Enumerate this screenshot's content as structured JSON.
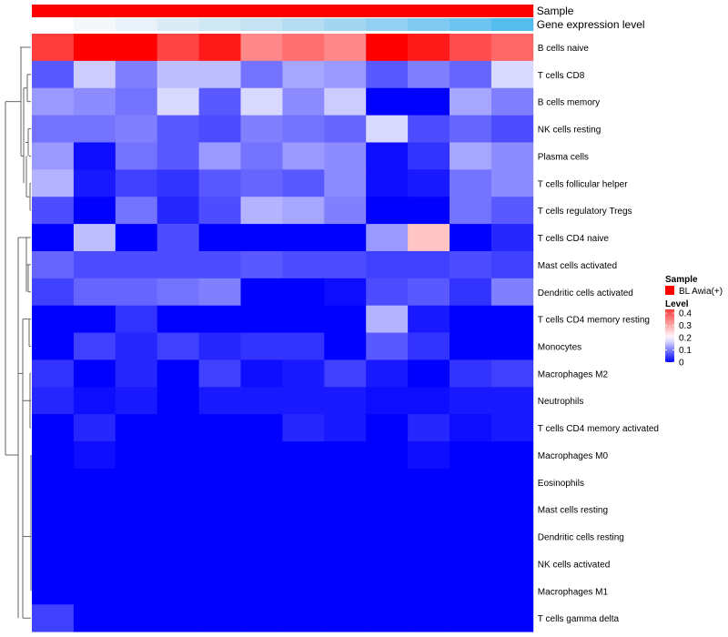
{
  "chart_data": {
    "type": "heatmap",
    "annotations": [
      {
        "label": "Sample",
        "colors": [
          "#ff0000",
          "#ff0000",
          "#ff0000",
          "#ff0000",
          "#ff0000",
          "#ff0000",
          "#ff0000",
          "#ff0000",
          "#ff0000",
          "#ff0000",
          "#ff0000",
          "#ff0000"
        ]
      },
      {
        "label": "Gene expression level",
        "colors": [
          "#ffffff",
          "#f4f8fb",
          "#e9f2f8",
          "#dcecf6",
          "#d0e7f4",
          "#c4e2f2",
          "#b5dcf1",
          "#a5d6f1",
          "#93d0f1",
          "#80caf1",
          "#6dc4f1",
          "#55bdee"
        ]
      }
    ],
    "rows": [
      "B cells naive",
      "T cells CD8",
      "B cells memory",
      "NK cells resting",
      "Plasma cells",
      "T cells follicular helper",
      "T cells regulatory  Tregs",
      "T cells CD4 naive",
      "Mast cells activated",
      "Dendritic cells activated",
      "T cells CD4 memory resting",
      "Monocytes",
      "Macrophages M2",
      "Neutrophils",
      "T cells CD4 memory activated",
      "Macrophages M0",
      "Eosinophils",
      "Mast cells resting",
      "Dendritic cells resting",
      "NK cells activated",
      "Macrophages M1",
      "T cells gamma delta"
    ],
    "values": [
      [
        0.43,
        0.5,
        0.5,
        0.42,
        0.47,
        0.34,
        0.37,
        0.34,
        0.5,
        0.47,
        0.41,
        0.38
      ],
      [
        0.07,
        0.16,
        0.1,
        0.15,
        0.15,
        0.09,
        0.13,
        0.12,
        0.07,
        0.1,
        0.08,
        0.17
      ],
      [
        0.12,
        0.11,
        0.09,
        0.17,
        0.07,
        0.17,
        0.11,
        0.16,
        0.0,
        0.0,
        0.13,
        0.1
      ],
      [
        0.09,
        0.09,
        0.1,
        0.07,
        0.06,
        0.1,
        0.09,
        0.08,
        0.17,
        0.06,
        0.08,
        0.06
      ],
      [
        0.12,
        0.01,
        0.09,
        0.07,
        0.12,
        0.09,
        0.12,
        0.11,
        0.01,
        0.04,
        0.13,
        0.11
      ],
      [
        0.14,
        0.02,
        0.05,
        0.04,
        0.07,
        0.08,
        0.07,
        0.11,
        0.01,
        0.02,
        0.09,
        0.11
      ],
      [
        0.06,
        0.0,
        0.09,
        0.03,
        0.06,
        0.14,
        0.13,
        0.1,
        0.0,
        0.0,
        0.09,
        0.07
      ],
      [
        0.0,
        0.15,
        0.0,
        0.06,
        0.0,
        0.0,
        0.0,
        0.0,
        0.12,
        0.27,
        0.0,
        0.03
      ],
      [
        0.08,
        0.06,
        0.06,
        0.06,
        0.06,
        0.07,
        0.06,
        0.06,
        0.05,
        0.05,
        0.06,
        0.05
      ],
      [
        0.05,
        0.08,
        0.08,
        0.09,
        0.1,
        0.0,
        0.0,
        0.01,
        0.06,
        0.07,
        0.04,
        0.1
      ],
      [
        0.0,
        0.0,
        0.04,
        0.0,
        0.0,
        0.0,
        0.0,
        0.0,
        0.14,
        0.02,
        0.0,
        0.0
      ],
      [
        0.0,
        0.05,
        0.03,
        0.05,
        0.03,
        0.04,
        0.04,
        0.0,
        0.07,
        0.04,
        0.0,
        0.0
      ],
      [
        0.04,
        0.0,
        0.03,
        0.0,
        0.05,
        0.01,
        0.02,
        0.05,
        0.02,
        0.0,
        0.04,
        0.05
      ],
      [
        0.03,
        0.01,
        0.02,
        0.0,
        0.02,
        0.02,
        0.02,
        0.02,
        0.01,
        0.01,
        0.02,
        0.02
      ],
      [
        0.0,
        0.03,
        0.0,
        0.0,
        0.0,
        0.0,
        0.03,
        0.02,
        0.0,
        0.03,
        0.01,
        0.02
      ],
      [
        0.0,
        0.01,
        0.0,
        0.0,
        0.0,
        0.0,
        0.0,
        0.0,
        0.0,
        0.01,
        0.0,
        0.0
      ],
      [
        0.0,
        0.0,
        0.0,
        0.0,
        0.0,
        0.0,
        0.0,
        0.0,
        0.0,
        0.0,
        0.0,
        0.0
      ],
      [
        0.0,
        0.0,
        0.0,
        0.0,
        0.0,
        0.0,
        0.0,
        0.0,
        0.0,
        0.0,
        0.0,
        0.0
      ],
      [
        0.0,
        0.0,
        0.0,
        0.0,
        0.0,
        0.0,
        0.0,
        0.0,
        0.0,
        0.0,
        0.0,
        0.0
      ],
      [
        0.0,
        0.0,
        0.0,
        0.0,
        0.0,
        0.0,
        0.0,
        0.0,
        0.0,
        0.0,
        0.0,
        0.0
      ],
      [
        0.0,
        0.0,
        0.0,
        0.0,
        0.0,
        0.0,
        0.0,
        0.0,
        0.0,
        0.0,
        0.0,
        0.0
      ],
      [
        0.05,
        0.0,
        0.0,
        0.0,
        0.0,
        0.0,
        0.0,
        0.0,
        0.0,
        0.0,
        0.0,
        0.0
      ]
    ],
    "color_scale": {
      "stops": [
        {
          "value": 0.0,
          "color": "#0000ff"
        },
        {
          "value": 0.2,
          "color": "#ffffff"
        },
        {
          "value": 0.5,
          "color": "#ff0000"
        }
      ]
    },
    "legend": {
      "position": "right",
      "sample_title": "Sample",
      "sample_entry": "BL Awia(+)",
      "sample_color": "#ff0000",
      "level_title": "Level",
      "level_ticks": [
        "0.4",
        "0.3",
        "0.2",
        "0.1",
        "0"
      ],
      "level_tick_values": [
        0.4,
        0.3,
        0.2,
        0.1,
        0.0
      ],
      "level_range": [
        0,
        0.43
      ]
    },
    "dendrogram": "rows",
    "grid": false
  }
}
